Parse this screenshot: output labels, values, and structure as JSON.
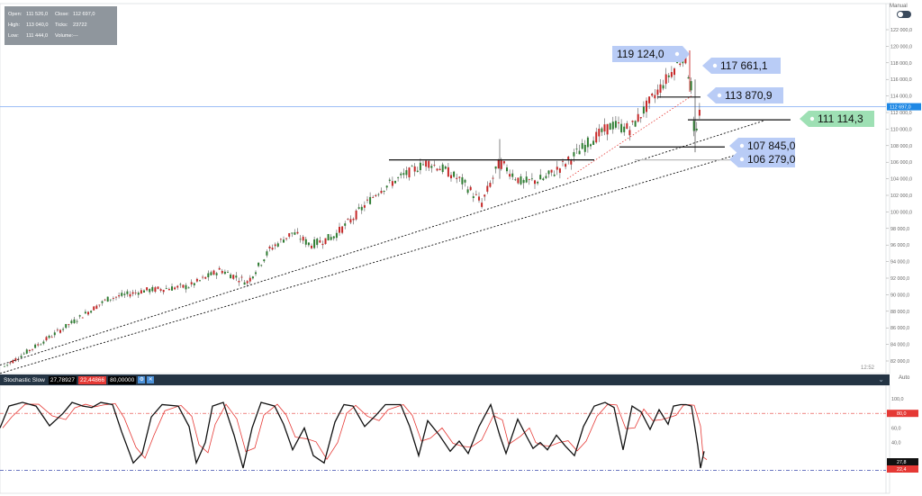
{
  "ohlc": {
    "open_label": "Open:",
    "open": "111 526,0",
    "close_label": "Close:",
    "close": "112 697,0",
    "high_label": "High:",
    "high": "113 040,0",
    "ticks_label": "Ticks:",
    "ticks": "23722",
    "low_label": "Low:",
    "low": "111 444,0",
    "volume_label": "Volume:",
    "volume": "---"
  },
  "mode_label": "Manual",
  "auto_label": "Auto",
  "time_label": "12:52",
  "indicator": {
    "name": "Stochastic Slow",
    "value1": "27,78927",
    "value2": "22,44866",
    "value3": "80,00000",
    "gear_icon": "gear-icon",
    "close_icon": "close-icon"
  },
  "colors": {
    "bull": "#2e7d32",
    "bear": "#c62828",
    "label_blue": "#b9ccf6",
    "label_green": "#9ee0b4",
    "current_price": "#1e88e5"
  },
  "chart_data": [
    {
      "type": "candlestick",
      "y_axis": {
        "min": 80000,
        "max": 124000,
        "ticks": [
          "82 000,0",
          "84 000,0",
          "86 000,0",
          "88 000,0",
          "90 000,0",
          "92 000,0",
          "94 000,0",
          "96 000,0",
          "98 000,0",
          "100 000,0",
          "102 000,0",
          "104 000,0",
          "106 000,0",
          "108 000,0",
          "110 000,0",
          "112 000,0",
          "114 000,0",
          "116 000,0",
          "118 000,0",
          "120 000,0",
          "122 000,0"
        ]
      },
      "current_price": "112 697,0",
      "price_labels": [
        "119 124,0",
        "117 661,1",
        "113 870,9",
        "111 114,3",
        "107 845,0",
        "106 279,0"
      ],
      "trend_path": [
        [
          0,
          81000
        ],
        [
          50,
          84500
        ],
        [
          120,
          89500
        ],
        [
          160,
          90500
        ],
        [
          210,
          91000
        ],
        [
          245,
          93000
        ],
        [
          275,
          91500
        ],
        [
          300,
          95500
        ],
        [
          325,
          97500
        ],
        [
          345,
          96000
        ],
        [
          370,
          97000
        ],
        [
          390,
          99000
        ],
        [
          420,
          102500
        ],
        [
          450,
          104500
        ],
        [
          475,
          106000
        ],
        [
          495,
          105000
        ],
        [
          515,
          103500
        ],
        [
          535,
          101000
        ],
        [
          555,
          106000
        ],
        [
          580,
          103500
        ],
        [
          605,
          104000
        ],
        [
          630,
          106000
        ],
        [
          655,
          108500
        ],
        [
          680,
          110500
        ],
        [
          700,
          110000
        ],
        [
          720,
          113000
        ],
        [
          740,
          116000
        ],
        [
          760,
          119000
        ],
        [
          768,
          115000
        ],
        [
          772,
          108000
        ],
        [
          778,
          113000
        ]
      ]
    },
    {
      "type": "line",
      "name": "Stochastic Slow",
      "y_axis": {
        "ticks": [
          "100,0",
          "80,0",
          "60,0",
          "40,0"
        ]
      },
      "levels": [
        "80,0"
      ],
      "last_values": [
        "27,8",
        "22,4"
      ],
      "k_path": [
        [
          0,
          60
        ],
        [
          10,
          90
        ],
        [
          25,
          95
        ],
        [
          40,
          90
        ],
        [
          55,
          63
        ],
        [
          70,
          80
        ],
        [
          80,
          95
        ],
        [
          92,
          90
        ],
        [
          102,
          88
        ],
        [
          112,
          95
        ],
        [
          125,
          92
        ],
        [
          135,
          55
        ],
        [
          148,
          12
        ],
        [
          158,
          25
        ],
        [
          168,
          75
        ],
        [
          180,
          92
        ],
        [
          198,
          90
        ],
        [
          210,
          62
        ],
        [
          218,
          12
        ],
        [
          228,
          40
        ],
        [
          236,
          90
        ],
        [
          248,
          95
        ],
        [
          260,
          50
        ],
        [
          270,
          5
        ],
        [
          280,
          60
        ],
        [
          290,
          95
        ],
        [
          305,
          90
        ],
        [
          315,
          65
        ],
        [
          325,
          30
        ],
        [
          338,
          60
        ],
        [
          348,
          22
        ],
        [
          360,
          12
        ],
        [
          372,
          68
        ],
        [
          382,
          92
        ],
        [
          392,
          90
        ],
        [
          405,
          62
        ],
        [
          418,
          78
        ],
        [
          428,
          92
        ],
        [
          445,
          92
        ],
        [
          455,
          62
        ],
        [
          465,
          22
        ],
        [
          475,
          70
        ],
        [
          488,
          50
        ],
        [
          500,
          28
        ],
        [
          510,
          42
        ],
        [
          520,
          25
        ],
        [
          532,
          62
        ],
        [
          545,
          92
        ],
        [
          555,
          50
        ],
        [
          562,
          25
        ],
        [
          575,
          72
        ],
        [
          585,
          48
        ],
        [
          592,
          32
        ],
        [
          600,
          40
        ],
        [
          608,
          30
        ],
        [
          618,
          50
        ],
        [
          628,
          35
        ],
        [
          638,
          22
        ],
        [
          648,
          62
        ],
        [
          660,
          90
        ],
        [
          672,
          95
        ],
        [
          682,
          88
        ],
        [
          692,
          30
        ],
        [
          702,
          90
        ],
        [
          712,
          82
        ],
        [
          722,
          58
        ],
        [
          732,
          85
        ],
        [
          742,
          65
        ],
        [
          748,
          90
        ],
        [
          756,
          92
        ],
        [
          762,
          92
        ],
        [
          768,
          90
        ],
        [
          775,
          35
        ],
        [
          778,
          5
        ],
        [
          782,
          28
        ]
      ]
    }
  ]
}
